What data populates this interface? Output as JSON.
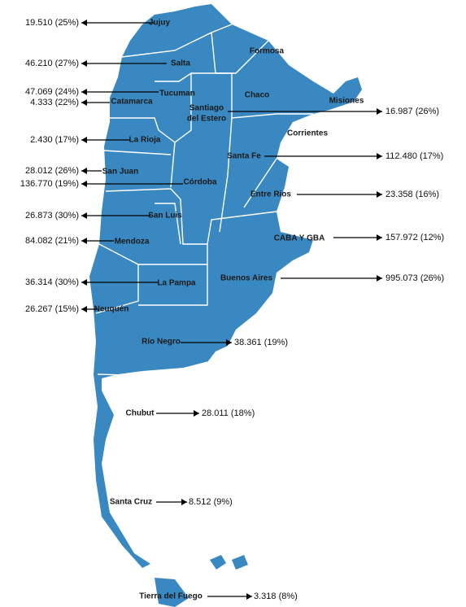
{
  "regions": [
    {
      "name": "Jujuy",
      "value": "19.510 (25%)"
    },
    {
      "name": "Salta",
      "value": "46.210 (27%)"
    },
    {
      "name": "Tucuman",
      "value": "47.069 (24%)"
    },
    {
      "name": "Catamarca",
      "value": "4.333 (22%)"
    },
    {
      "name": "La Rioja",
      "value": "2.430 (17%)"
    },
    {
      "name": "San Juan",
      "value": "28.012 (26%)"
    },
    {
      "name": "Córdoba",
      "value": "136.770 (19%)"
    },
    {
      "name": "San Luis",
      "value": "26.873 (30%)"
    },
    {
      "name": "Mendoza",
      "value": "84.082 (21%)"
    },
    {
      "name": "La Pampa",
      "value": "36.314 (30%)"
    },
    {
      "name": "Neuquén",
      "value": "26.267 (15%)"
    },
    {
      "name": [
        "Santiago",
        "del Estero"
      ],
      "value": "16.987 (26%)"
    },
    {
      "name": "Santa Fe",
      "value": "112.480 (17%)"
    },
    {
      "name": "Entre Rios",
      "value": "23.358 (16%)"
    },
    {
      "name": "CABA Y GBA",
      "value": "157.972 (12%)"
    },
    {
      "name": "Buenos Aires",
      "value": "995.073 (26%)"
    },
    {
      "name": "Río Negro",
      "value": "38.361 (19%)"
    },
    {
      "name": "Chubut",
      "value": "28.011 (18%)"
    },
    {
      "name": "Santa Cruz",
      "value": "8.512 (9%)"
    },
    {
      "name": "Tierra del Fuego",
      "value": "3.318 (8%)"
    }
  ],
  "other_names": [
    "Formosa",
    "Chaco",
    "Misiones",
    "Corrientes"
  ]
}
